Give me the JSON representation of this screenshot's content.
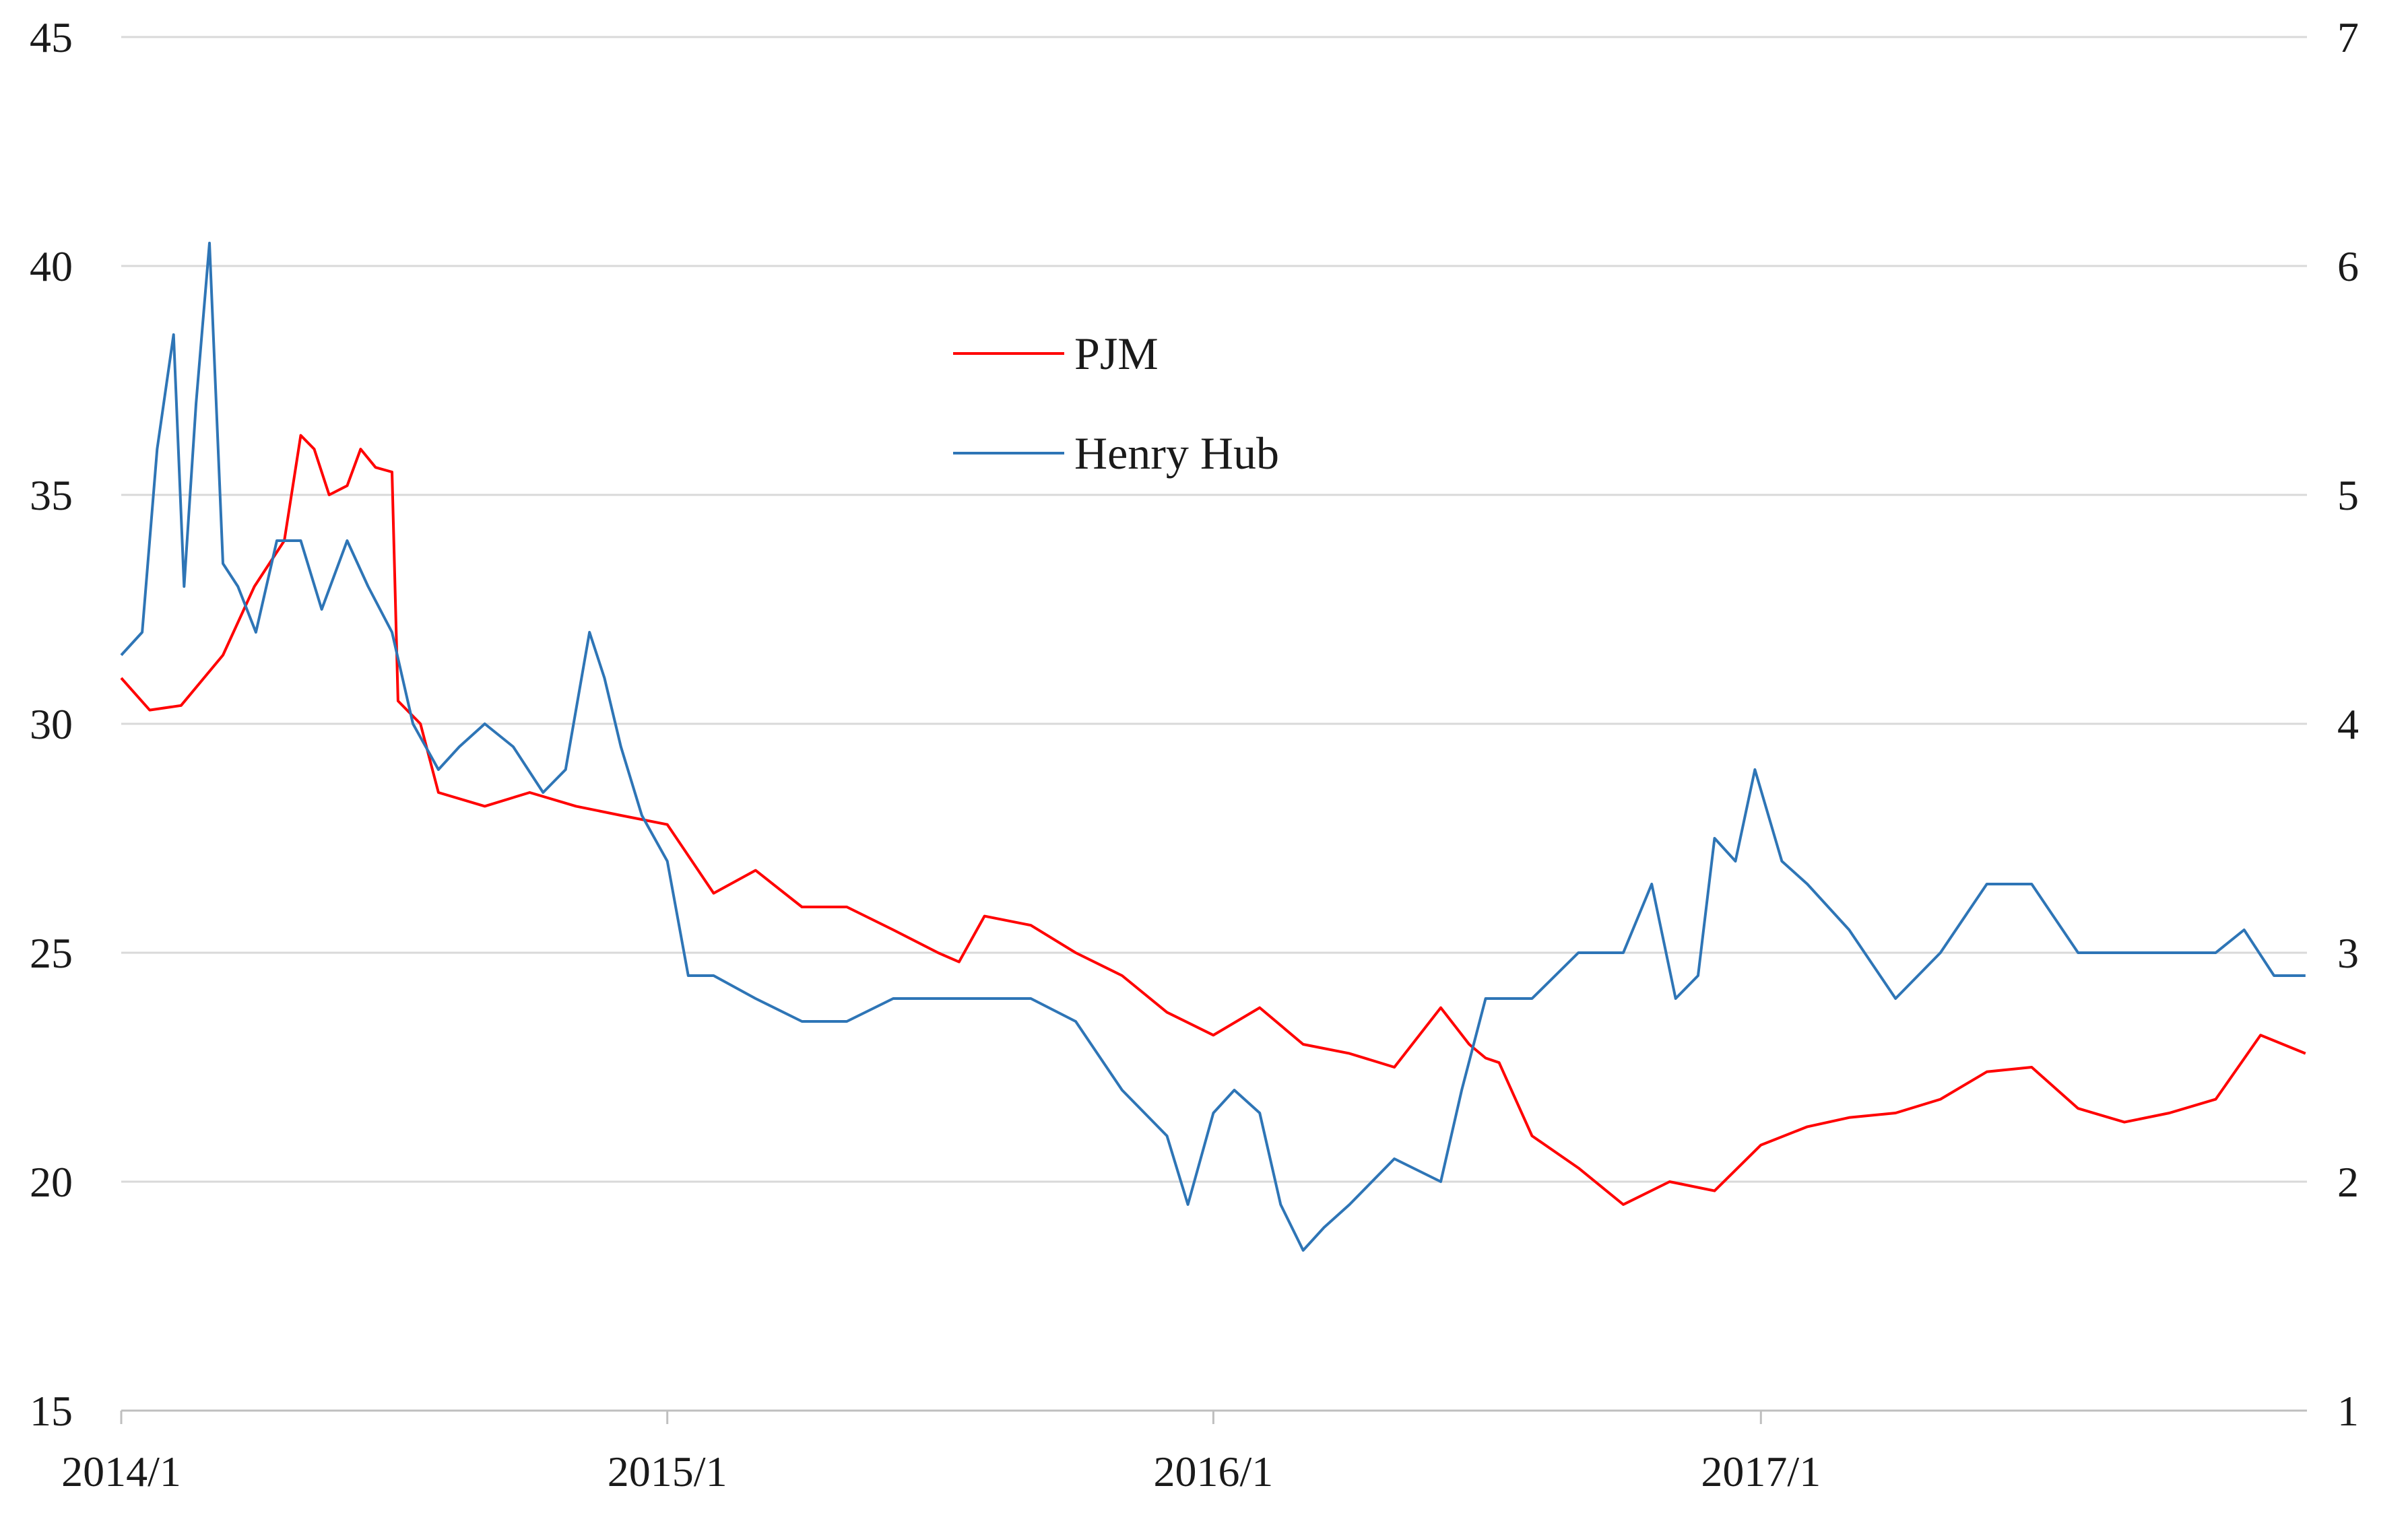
{
  "chart_data": {
    "type": "line",
    "x_axis": {
      "ticks": [
        "2014/1",
        "2015/1",
        "2016/1",
        "2017/1"
      ],
      "range": [
        "2014-01-01",
        "2017-12-31"
      ]
    },
    "y_left": {
      "range": [
        15,
        45
      ],
      "ticks": [
        15,
        20,
        25,
        30,
        35,
        40,
        45
      ]
    },
    "y_right": {
      "range": [
        1,
        7
      ],
      "ticks": [
        1,
        2,
        3,
        4,
        5,
        6,
        7
      ]
    },
    "grid": true,
    "legend": {
      "placement": "upper-center"
    },
    "series": [
      {
        "name": "PJM",
        "axis": "left",
        "color": "#ff0000",
        "x": [
          "2014-01-01",
          "2014-01-20",
          "2014-02-10",
          "2014-03-10",
          "2014-03-31",
          "2014-04-20",
          "2014-05-01",
          "2014-05-10",
          "2014-05-20",
          "2014-06-01",
          "2014-06-10",
          "2014-06-20",
          "2014-07-01",
          "2014-07-05",
          "2014-07-20",
          "2014-08-01",
          "2014-09-01",
          "2014-10-01",
          "2014-11-01",
          "2014-12-01",
          "2015-01-01",
          "2015-02-01",
          "2015-03-01",
          "2015-04-01",
          "2015-05-01",
          "2015-06-01",
          "2015-07-01",
          "2015-07-15",
          "2015-08-01",
          "2015-09-01",
          "2015-10-01",
          "2015-11-01",
          "2015-12-01",
          "2016-01-01",
          "2016-02-01",
          "2016-03-01",
          "2016-04-01",
          "2016-05-01",
          "2016-06-01",
          "2016-06-20",
          "2016-07-01",
          "2016-07-10",
          "2016-08-01",
          "2016-09-01",
          "2016-10-01",
          "2016-11-01",
          "2016-12-01",
          "2017-01-01",
          "2017-02-01",
          "2017-03-01",
          "2017-04-01",
          "2017-05-01",
          "2017-06-01",
          "2017-07-01",
          "2017-08-01",
          "2017-09-01",
          "2017-10-01",
          "2017-11-01",
          "2017-12-01",
          "2017-12-31"
        ],
        "y": [
          31.0,
          30.3,
          30.4,
          31.5,
          33.0,
          34.0,
          36.3,
          36.0,
          35.0,
          35.2,
          36.0,
          35.6,
          35.5,
          30.5,
          30.0,
          28.5,
          28.2,
          28.5,
          28.2,
          28.0,
          27.8,
          26.3,
          26.8,
          26.0,
          26.0,
          25.5,
          25.0,
          24.8,
          25.8,
          25.6,
          25.0,
          24.5,
          23.7,
          23.2,
          23.8,
          23.0,
          22.8,
          22.5,
          23.8,
          23.0,
          22.7,
          22.6,
          21.0,
          20.3,
          19.5,
          20.0,
          19.8,
          20.8,
          21.2,
          21.4,
          21.5,
          21.8,
          22.4,
          22.5,
          21.6,
          21.3,
          21.5,
          21.8,
          23.2,
          22.8
        ]
      },
      {
        "name": "Henry Hub",
        "axis": "right",
        "color": "#2e75b6",
        "x": [
          "2014-01-01",
          "2014-01-15",
          "2014-01-25",
          "2014-02-05",
          "2014-02-12",
          "2014-02-20",
          "2014-03-01",
          "2014-03-10",
          "2014-03-20",
          "2014-04-01",
          "2014-04-15",
          "2014-05-01",
          "2014-05-15",
          "2014-06-01",
          "2014-06-15",
          "2014-07-01",
          "2014-07-15",
          "2014-08-01",
          "2014-08-15",
          "2014-09-01",
          "2014-09-20",
          "2014-10-10",
          "2014-10-25",
          "2014-11-10",
          "2014-11-20",
          "2014-12-01",
          "2014-12-15",
          "2015-01-01",
          "2015-01-15",
          "2015-02-01",
          "2015-03-01",
          "2015-04-01",
          "2015-05-01",
          "2015-06-01",
          "2015-07-01",
          "2015-08-01",
          "2015-09-01",
          "2015-10-01",
          "2015-11-01",
          "2015-12-01",
          "2015-12-15",
          "2016-01-01",
          "2016-01-15",
          "2016-02-01",
          "2016-02-15",
          "2016-03-01",
          "2016-03-15",
          "2016-04-01",
          "2016-05-01",
          "2016-06-01",
          "2016-06-15",
          "2016-07-01",
          "2016-08-01",
          "2016-09-01",
          "2016-10-01",
          "2016-10-20",
          "2016-11-05",
          "2016-11-20",
          "2016-12-01",
          "2016-12-15",
          "2016-12-28",
          "2017-01-15",
          "2017-02-01",
          "2017-03-01",
          "2017-04-01",
          "2017-05-01",
          "2017-06-01",
          "2017-07-01",
          "2017-08-01",
          "2017-09-01",
          "2017-10-01",
          "2017-11-01",
          "2017-11-20",
          "2017-12-10",
          "2017-12-31"
        ],
        "y": [
          4.3,
          4.4,
          5.2,
          5.7,
          4.6,
          5.4,
          6.1,
          4.7,
          4.6,
          4.4,
          4.8,
          4.8,
          4.5,
          4.8,
          4.6,
          4.4,
          4.0,
          3.8,
          3.9,
          4.0,
          3.9,
          3.7,
          3.8,
          4.4,
          4.2,
          3.9,
          3.6,
          3.4,
          2.9,
          2.9,
          2.8,
          2.7,
          2.7,
          2.8,
          2.8,
          2.8,
          2.8,
          2.7,
          2.4,
          2.2,
          1.9,
          2.3,
          2.4,
          2.3,
          1.9,
          1.7,
          1.8,
          1.9,
          2.1,
          2.0,
          2.4,
          2.8,
          2.8,
          3.0,
          3.0,
          3.3,
          2.8,
          2.9,
          3.5,
          3.4,
          3.8,
          3.4,
          3.3,
          3.1,
          2.8,
          3.0,
          3.3,
          3.3,
          3.0,
          3.0,
          3.0,
          3.0,
          3.1,
          2.9,
          2.9
        ]
      }
    ]
  }
}
